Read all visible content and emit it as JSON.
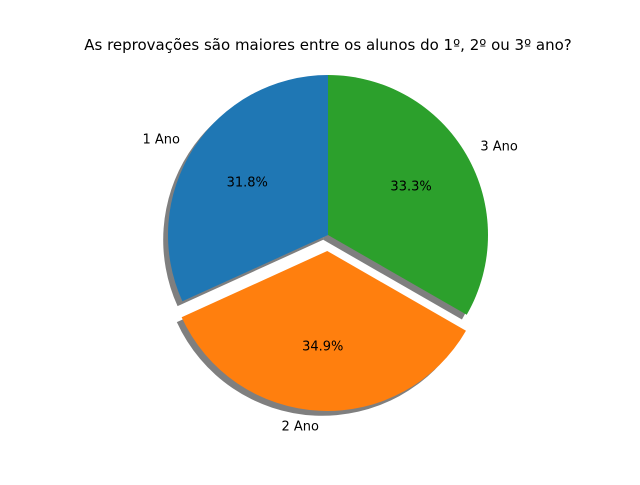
{
  "chart_data": {
    "type": "pie",
    "title": "As reprovações são maiores entre os alunos do 1º, 2º ou 3º ano?",
    "labels": [
      "1 Ano",
      "2 Ano",
      "3 Ano"
    ],
    "values": [
      31.8,
      34.9,
      33.3
    ],
    "percent_labels": [
      "31.8%",
      "34.9%",
      "33.3%"
    ],
    "colors": [
      "#1f77b4",
      "#ff7f0e",
      "#2ca02c"
    ],
    "explode": [
      0,
      0.1,
      0
    ],
    "shadow": true,
    "start_angle": 90,
    "legend": false
  }
}
